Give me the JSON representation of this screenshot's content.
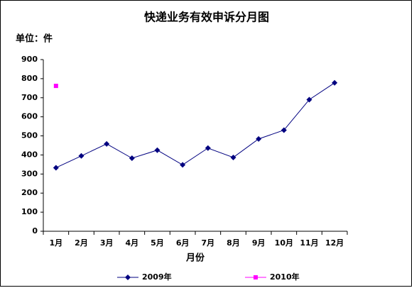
{
  "chart_data": {
    "type": "line",
    "title": "快递业务有效申诉分月图",
    "unit_label": "单位：件",
    "x_label": "月份",
    "categories": [
      "1月",
      "2月",
      "3月",
      "4月",
      "5月",
      "6月",
      "7月",
      "8月",
      "9月",
      "10月",
      "11月",
      "12月"
    ],
    "series": [
      {
        "name": "2009年",
        "color": "#000080",
        "marker": "diamond",
        "values": [
          333,
          395,
          458,
          383,
          425,
          348,
          436,
          387,
          484,
          530,
          690,
          778
        ]
      },
      {
        "name": "2010年",
        "color": "#ff00ff",
        "marker": "square",
        "values": [
          762,
          null,
          null,
          null,
          null,
          null,
          null,
          null,
          null,
          null,
          null,
          null
        ]
      }
    ],
    "ylim": [
      0,
      900
    ],
    "yticks": [
      0,
      100,
      200,
      300,
      400,
      500,
      600,
      700,
      800,
      900
    ],
    "grid": false,
    "legend": "bottom"
  }
}
